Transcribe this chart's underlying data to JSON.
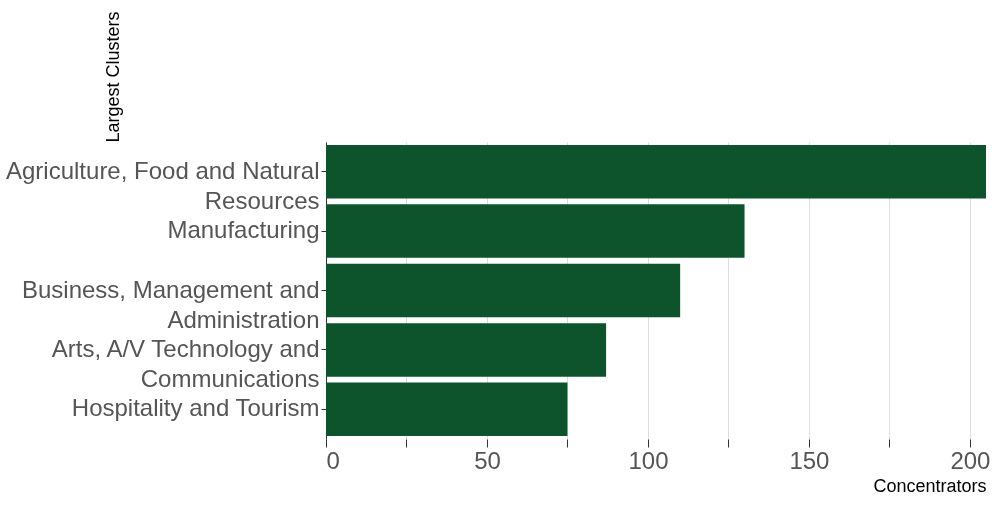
{
  "chart_data": {
    "type": "bar",
    "orientation": "horizontal",
    "xlabel": "Concentrators",
    "ylabel": "Largest Clusters",
    "categories": [
      "Agriculture, Food and Natural Resources",
      "Manufacturing",
      "Business, Management and Administration",
      "Arts, A/V Technology and Communications",
      "Hospitality and Tourism"
    ],
    "values": [
      205,
      130,
      110,
      87,
      75
    ],
    "color": "#0d542c",
    "xlim": [
      0,
      205
    ],
    "xticks": [
      0,
      {
        "value": 25,
        "label": null
      },
      50,
      {
        "value": 75,
        "label": null
      },
      100,
      {
        "value": 125,
        "label": null
      },
      150,
      {
        "value": 175,
        "label": null
      },
      200
    ],
    "grid": "x"
  }
}
